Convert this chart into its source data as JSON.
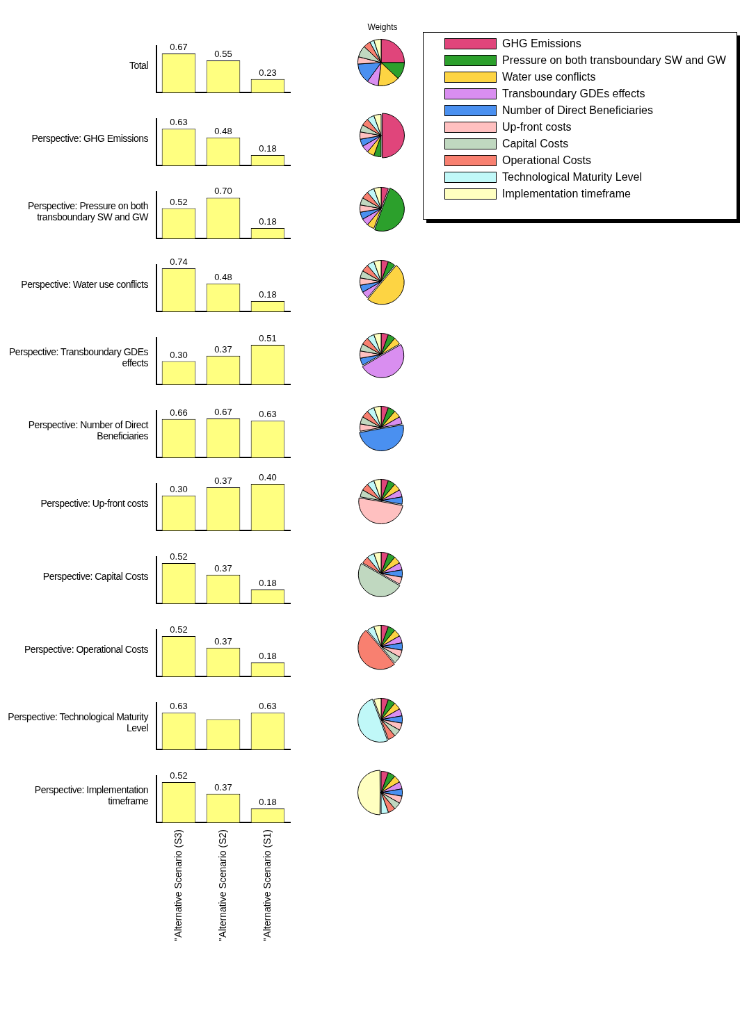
{
  "chart_data": [
    {
      "type": "bar",
      "title": "Total",
      "categories": [
        null,
        null,
        null
      ],
      "values": [
        0.67,
        0.55,
        0.23
      ],
      "value_labels": [
        "0.67",
        "0.55",
        "0.23"
      ],
      "color": "#ffff80",
      "tick_labels": false
    },
    {
      "type": "pie",
      "title": "Weights",
      "categories": [
        "GHG Emissions",
        "Pressure on both transboundary SW and GW",
        "Water use conflicts",
        "Transboundary GDEs effects",
        "Number of Direct Beneficiaries",
        "Up-front costs",
        "Capital Costs",
        "Operational Costs",
        "Technological Maturity Level",
        "Implementation timeframe"
      ],
      "values": [
        25,
        12,
        15,
        8,
        14,
        5,
        8,
        5,
        3,
        5
      ],
      "colors": [
        "#e0457b",
        "#2ca02c",
        "#fdd443",
        "#d98ef0",
        "#4a90f0",
        "#ffc0c0",
        "#c0d8c0",
        "#f88070",
        "#c0f8f8",
        "#ffffc0"
      ],
      "legend": "right"
    },
    {
      "type": "bar",
      "title": "Perspective: GHG Emissions",
      "categories": [
        null,
        null,
        null
      ],
      "values": [
        0.63,
        0.48,
        0.18
      ],
      "value_labels": [
        "0.63",
        "0.48",
        "0.18"
      ],
      "color": "#ffff80",
      "tick_labels": false
    },
    {
      "type": "pie",
      "values": [
        50,
        5.55,
        5.55,
        5.55,
        5.55,
        5.55,
        5.55,
        5.55,
        5.55,
        5.55
      ],
      "colors": [
        "#e0457b",
        "#2ca02c",
        "#fdd443",
        "#d98ef0",
        "#4a90f0",
        "#ffc0c0",
        "#c0d8c0",
        "#f88070",
        "#c0f8f8",
        "#ffffc0"
      ]
    },
    {
      "type": "bar",
      "title": "Perspective: Pressure on both transboundary SW and GW",
      "categories": [
        null,
        null,
        null
      ],
      "values": [
        0.52,
        0.7,
        0.18
      ],
      "value_labels": [
        "0.52",
        "0.70",
        "0.18"
      ],
      "color": "#ffff80",
      "tick_labels": false
    },
    {
      "type": "pie",
      "values": [
        5.55,
        50,
        5.55,
        5.55,
        5.55,
        5.55,
        5.55,
        5.55,
        5.55,
        5.55
      ],
      "colors": [
        "#e0457b",
        "#2ca02c",
        "#fdd443",
        "#d98ef0",
        "#4a90f0",
        "#ffc0c0",
        "#c0d8c0",
        "#f88070",
        "#c0f8f8",
        "#ffffc0"
      ]
    },
    {
      "type": "bar",
      "title": "Perspective: Water use conflicts",
      "categories": [
        null,
        null,
        null
      ],
      "values": [
        0.74,
        0.48,
        0.18
      ],
      "value_labels": [
        "0.74",
        "0.48",
        "0.18"
      ],
      "color": "#ffff80",
      "tick_labels": false
    },
    {
      "type": "pie",
      "values": [
        5.55,
        5.55,
        50,
        5.55,
        5.55,
        5.55,
        5.55,
        5.55,
        5.55,
        5.55
      ],
      "colors": [
        "#e0457b",
        "#2ca02c",
        "#fdd443",
        "#d98ef0",
        "#4a90f0",
        "#ffc0c0",
        "#c0d8c0",
        "#f88070",
        "#c0f8f8",
        "#ffffc0"
      ]
    },
    {
      "type": "bar",
      "title": "Perspective: Transboundary GDEs effects",
      "categories": [
        null,
        null,
        null
      ],
      "values": [
        0.3,
        0.37,
        0.51
      ],
      "value_labels": [
        "0.30",
        "0.37",
        "0.51"
      ],
      "color": "#ffff80",
      "tick_labels": false
    },
    {
      "type": "pie",
      "values": [
        5.55,
        5.55,
        5.55,
        50,
        5.55,
        5.55,
        5.55,
        5.55,
        5.55,
        5.55
      ],
      "colors": [
        "#e0457b",
        "#2ca02c",
        "#fdd443",
        "#d98ef0",
        "#4a90f0",
        "#ffc0c0",
        "#c0d8c0",
        "#f88070",
        "#c0f8f8",
        "#ffffc0"
      ]
    },
    {
      "type": "bar",
      "title": "Perspective: Number of Direct Beneficiaries",
      "categories": [
        null,
        null,
        null
      ],
      "values": [
        0.66,
        0.67,
        0.63
      ],
      "value_labels": [
        "0.66",
        "0.67",
        "0.63"
      ],
      "color": "#ffff80",
      "tick_labels": false
    },
    {
      "type": "pie",
      "values": [
        5.55,
        5.55,
        5.55,
        5.55,
        50,
        5.55,
        5.55,
        5.55,
        5.55,
        5.55
      ],
      "colors": [
        "#e0457b",
        "#2ca02c",
        "#fdd443",
        "#d98ef0",
        "#4a90f0",
        "#ffc0c0",
        "#c0d8c0",
        "#f88070",
        "#c0f8f8",
        "#ffffc0"
      ]
    },
    {
      "type": "bar",
      "title": "Perspective: Up-front costs",
      "categories": [
        null,
        null,
        null
      ],
      "values": [
        0.3,
        0.37,
        0.4
      ],
      "value_labels": [
        "0.30",
        "0.37",
        "0.40"
      ],
      "color": "#ffff80",
      "tick_labels": false
    },
    {
      "type": "pie",
      "values": [
        5.55,
        5.55,
        5.55,
        5.55,
        5.55,
        50,
        5.55,
        5.55,
        5.55,
        5.55
      ],
      "colors": [
        "#e0457b",
        "#2ca02c",
        "#fdd443",
        "#d98ef0",
        "#4a90f0",
        "#ffc0c0",
        "#c0d8c0",
        "#f88070",
        "#c0f8f8",
        "#ffffc0"
      ]
    },
    {
      "type": "bar",
      "title": "Perspective: Capital Costs",
      "categories": [
        null,
        null,
        null
      ],
      "values": [
        0.52,
        0.37,
        0.18
      ],
      "value_labels": [
        "0.52",
        "0.37",
        "0.18"
      ],
      "color": "#ffff80",
      "tick_labels": false
    },
    {
      "type": "pie",
      "values": [
        5.55,
        5.55,
        5.55,
        5.55,
        5.55,
        5.55,
        50,
        5.55,
        5.55,
        5.55
      ],
      "colors": [
        "#e0457b",
        "#2ca02c",
        "#fdd443",
        "#d98ef0",
        "#4a90f0",
        "#ffc0c0",
        "#c0d8c0",
        "#f88070",
        "#c0f8f8",
        "#ffffc0"
      ]
    },
    {
      "type": "bar",
      "title": "Perspective: Operational Costs",
      "categories": [
        null,
        null,
        null
      ],
      "values": [
        0.52,
        0.37,
        0.18
      ],
      "value_labels": [
        "0.52",
        "0.37",
        "0.18"
      ],
      "color": "#ffff80",
      "tick_labels": false
    },
    {
      "type": "pie",
      "values": [
        5.55,
        5.55,
        5.55,
        5.55,
        5.55,
        5.55,
        5.55,
        50,
        5.55,
        5.55
      ],
      "colors": [
        "#e0457b",
        "#2ca02c",
        "#fdd443",
        "#d98ef0",
        "#4a90f0",
        "#ffc0c0",
        "#c0d8c0",
        "#f88070",
        "#c0f8f8",
        "#ffffc0"
      ]
    },
    {
      "type": "bar",
      "title": "Perspective: Technological Maturity Level",
      "categories": [
        null,
        null,
        null
      ],
      "values": [
        0.63,
        0.52,
        0.63
      ],
      "value_labels": [
        "0.63",
        null,
        "0.63"
      ],
      "color": "#ffff80",
      "tick_labels": false
    },
    {
      "type": "pie",
      "values": [
        5.55,
        5.55,
        5.55,
        5.55,
        5.55,
        5.55,
        5.55,
        5.55,
        50,
        5.55
      ],
      "colors": [
        "#e0457b",
        "#2ca02c",
        "#fdd443",
        "#d98ef0",
        "#4a90f0",
        "#ffc0c0",
        "#c0d8c0",
        "#f88070",
        "#c0f8f8",
        "#ffffc0"
      ]
    },
    {
      "type": "bar",
      "title": "Perspective: Implementation timeframe",
      "categories": [
        "\"Alternative Scenario (S3)",
        "\"Alternative Scenario (S2)",
        "\"Alternative Scenario (S1)"
      ],
      "values": [
        0.52,
        0.37,
        0.18
      ],
      "value_labels": [
        "0.52",
        "0.37",
        "0.18"
      ],
      "color": "#ffff80",
      "tick_labels": "x"
    },
    {
      "type": "pie",
      "values": [
        5.55,
        5.55,
        5.55,
        5.55,
        5.55,
        5.55,
        5.55,
        5.55,
        5.55,
        50
      ],
      "colors": [
        "#e0457b",
        "#2ca02c",
        "#fdd443",
        "#d98ef0",
        "#4a90f0",
        "#ffc0c0",
        "#c0d8c0",
        "#f88070",
        "#c0f8f8",
        "#ffffc0"
      ]
    }
  ]
}
